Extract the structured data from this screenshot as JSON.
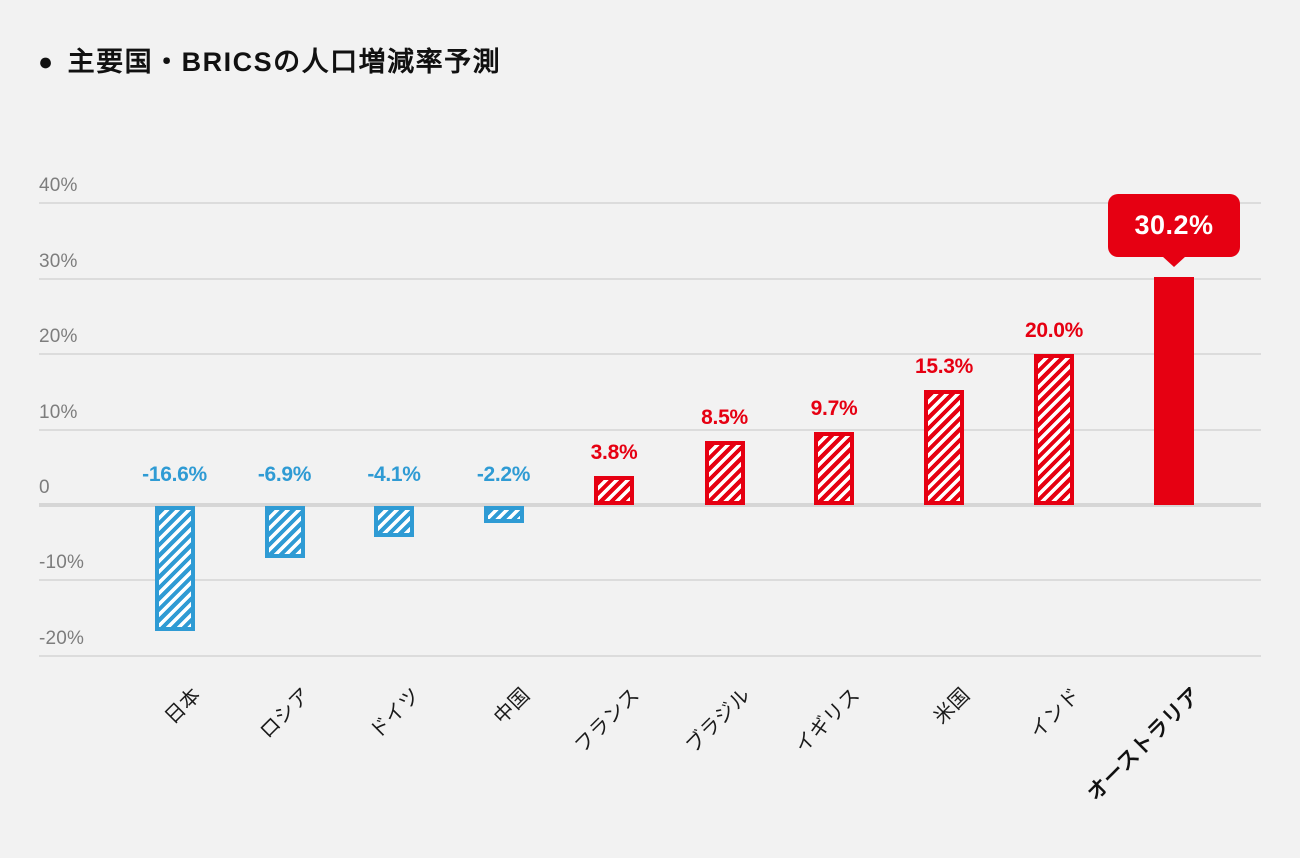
{
  "header": {
    "marker": "●",
    "title": "主要国・BRICSの人口増減率予測"
  },
  "chart_data": {
    "type": "bar",
    "title": "主要国・BRICSの人口増減率予測",
    "categories": [
      "日本",
      "ロシア",
      "ドイツ",
      "中国",
      "フランス",
      "ブラジル",
      "イギリス",
      "米国",
      "インド",
      "オーストラリア"
    ],
    "values": [
      -16.6,
      -6.9,
      -4.1,
      -2.2,
      3.8,
      8.5,
      9.7,
      15.3,
      20.0,
      30.2
    ],
    "value_labels": [
      "-16.6%",
      "-6.9%",
      "-4.1%",
      "-2.2%",
      "3.8%",
      "8.5%",
      "9.7%",
      "15.3%",
      "20.0%",
      "30.2%"
    ],
    "bar_fill": [
      "hatched",
      "hatched",
      "hatched",
      "hatched",
      "hatched",
      "hatched",
      "hatched",
      "hatched",
      "hatched",
      "solid"
    ],
    "yticks": [
      {
        "value": 40,
        "label": "40%"
      },
      {
        "value": 30,
        "label": "30%"
      },
      {
        "value": 20,
        "label": "20%"
      },
      {
        "value": 10,
        "label": "10%"
      },
      {
        "value": 0,
        "label": "0"
      },
      {
        "value": -10,
        "label": "-10%"
      },
      {
        "value": -20,
        "label": "-20%"
      }
    ],
    "ylim": [
      -20,
      40
    ],
    "grid": true,
    "legend": "none",
    "xlabel": "",
    "ylabel": "",
    "colors": {
      "negative": "#2f9bd4",
      "positive": "#e60012",
      "background": "#f2f2f2",
      "gridline": "#dcdcdc",
      "tick_text": "#7d7d7d",
      "badge_text": "#ffffff"
    },
    "highlight": {
      "index": 9,
      "label": "30.2%",
      "style": "callout-badge"
    }
  }
}
